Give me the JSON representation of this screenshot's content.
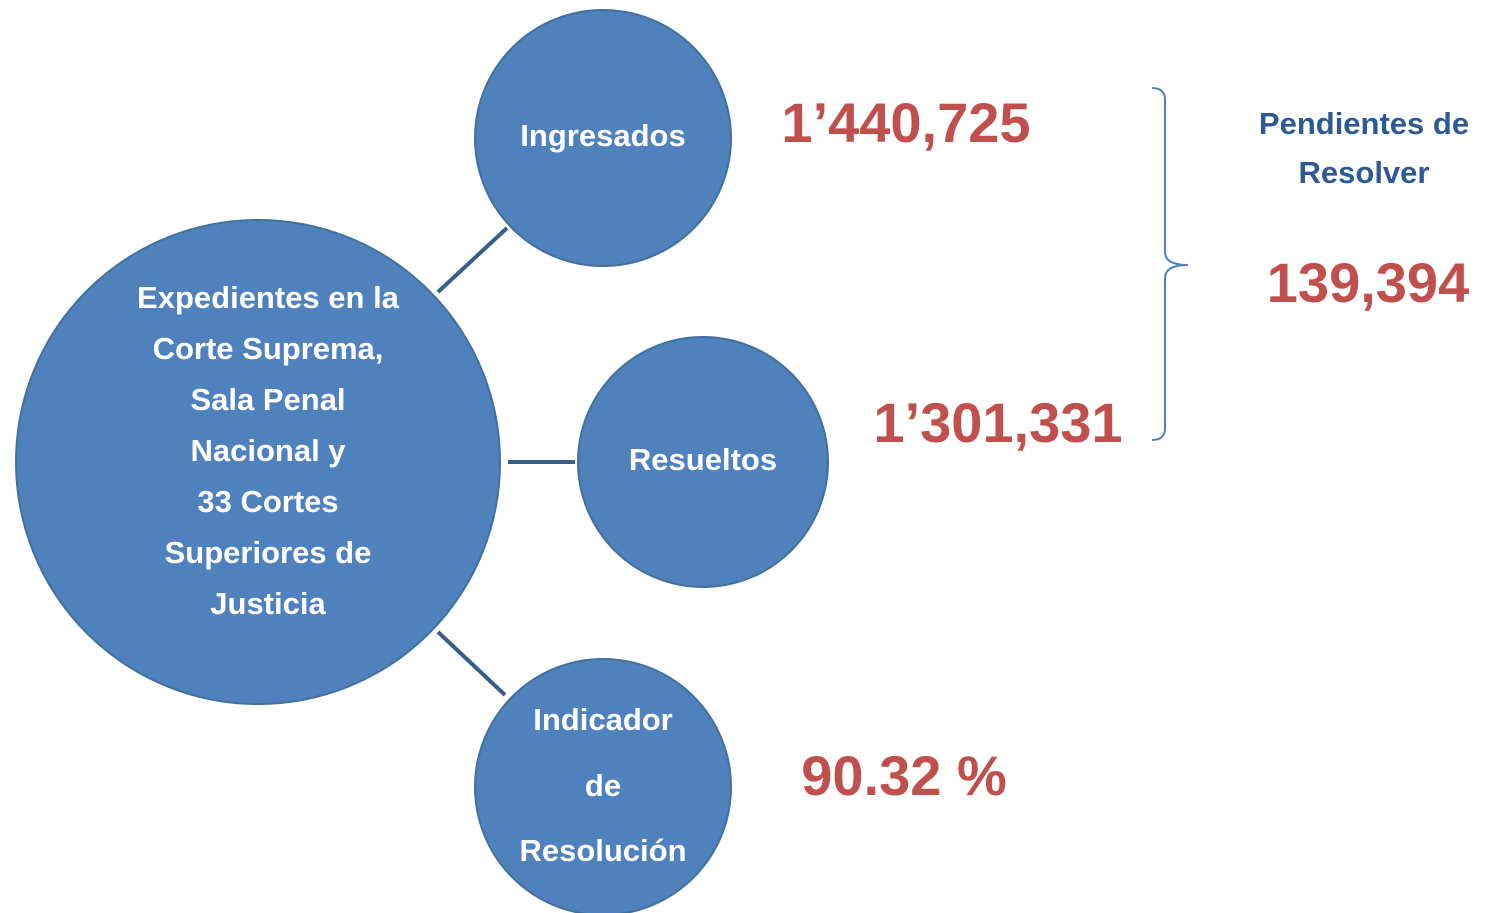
{
  "center": {
    "lines": [
      "Expedientes en la",
      "Corte Suprema,",
      "Sala Penal",
      "Nacional y",
      "33 Cortes",
      "Superiores de",
      "Justicia"
    ]
  },
  "nodes": [
    {
      "label": [
        "Ingresados"
      ],
      "value": "1’440,725"
    },
    {
      "label": [
        "Resueltos"
      ],
      "value": "1’301,331"
    },
    {
      "label": [
        "Indicador",
        "de",
        "Resolución"
      ],
      "value": "90.32 %"
    }
  ],
  "pending": {
    "label": [
      "Pendientes de",
      "Resolver"
    ],
    "value": "139,394"
  }
}
